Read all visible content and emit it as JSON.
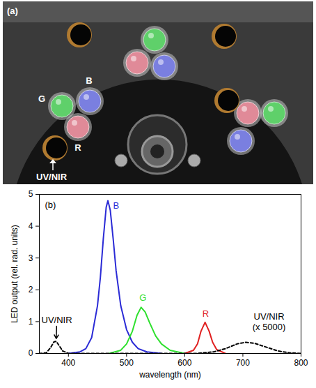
{
  "panel_a": {
    "label": "(a)",
    "led_labels": [
      "G",
      "B",
      "R",
      "UV/NIR"
    ]
  },
  "chart_data": {
    "type": "line",
    "panel_label": "(b)",
    "xlabel": "wavelength (nm)",
    "ylabel": "LED output (rel. rad. units)",
    "xlim": [
      350,
      800
    ],
    "xticks": [
      400,
      500,
      600,
      700,
      800
    ],
    "ylim": [
      0,
      5
    ],
    "yticks": [
      0,
      1,
      2,
      3,
      4,
      5
    ],
    "series": [
      {
        "name": "B",
        "color": "#2b2bd6",
        "line_style": "solid",
        "x": [
          400,
          420,
          430,
          440,
          450,
          455,
          460,
          465,
          468,
          472,
          477,
          482,
          490,
          500,
          510,
          520,
          535,
          560
        ],
        "values": [
          0,
          0.05,
          0.15,
          0.5,
          1.5,
          2.4,
          3.6,
          4.6,
          4.8,
          4.5,
          3.6,
          2.6,
          1.5,
          0.75,
          0.35,
          0.15,
          0.05,
          0
        ]
      },
      {
        "name": "G",
        "color": "#2ee02e",
        "line_style": "solid",
        "x": [
          470,
          490,
          500,
          510,
          518,
          525,
          532,
          540,
          550,
          560,
          575,
          600
        ],
        "values": [
          0,
          0.1,
          0.3,
          0.7,
          1.2,
          1.45,
          1.3,
          0.95,
          0.55,
          0.3,
          0.1,
          0
        ]
      },
      {
        "name": "R",
        "color": "#e02020",
        "line_style": "solid",
        "x": [
          600,
          615,
          622,
          628,
          635,
          642,
          648,
          655,
          670
        ],
        "values": [
          0,
          0.1,
          0.3,
          0.7,
          0.98,
          0.7,
          0.35,
          0.12,
          0
        ]
      },
      {
        "name": "UV/NIR",
        "color": "#000000",
        "line_style": "dashed",
        "x": [
          350,
          362,
          370,
          375,
          379,
          384,
          390,
          400,
          620,
          650,
          670,
          690,
          705,
          720,
          740,
          760,
          780,
          800
        ],
        "values": [
          0,
          0.02,
          0.2,
          0.36,
          0.38,
          0.25,
          0.08,
          0,
          0,
          0.05,
          0.15,
          0.3,
          0.35,
          0.32,
          0.2,
          0.08,
          0.02,
          0
        ]
      }
    ],
    "annotations": [
      {
        "text": "B",
        "x": 482,
        "y": 4.65,
        "color": "#2b2bd6"
      },
      {
        "text": "G",
        "x": 528,
        "y": 1.75,
        "color": "#2ee02e"
      },
      {
        "text": "R",
        "x": 636,
        "y": 1.25,
        "color": "#e02020"
      },
      {
        "text": "UV/NIR",
        "x": 380,
        "y": 1.05,
        "color": "#000000",
        "point": [
          379,
          0.38
        ]
      },
      {
        "text": "UV/NIR\n(x 5000)",
        "x": 745,
        "y": 1.0,
        "color": "#000000"
      }
    ]
  }
}
